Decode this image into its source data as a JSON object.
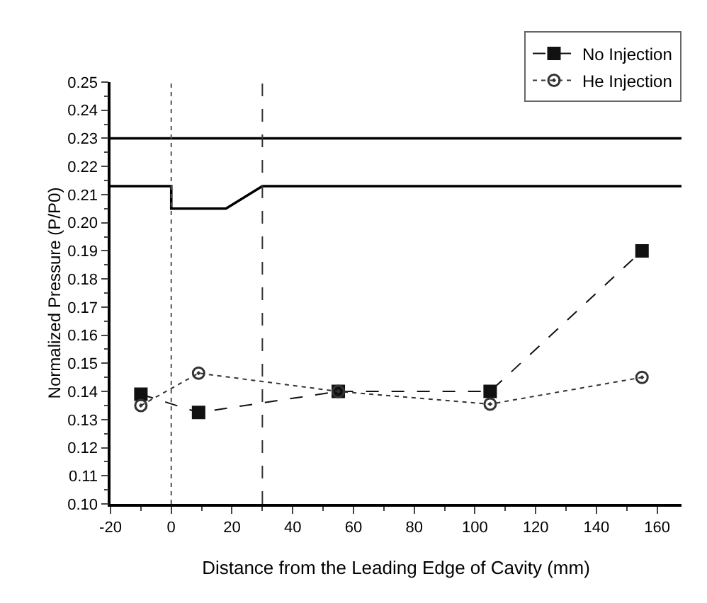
{
  "chart_data": {
    "type": "line",
    "xlabel": "Distance from the Leading Edge of Cavity (mm)",
    "ylabel": "Normalized Pressure (P/P0)",
    "x": [
      -10,
      9,
      55,
      105,
      155
    ],
    "series": [
      {
        "name": "No Injection",
        "color": "#111111",
        "marker": "square",
        "line_style": "dashed",
        "values": [
          0.139,
          0.1325,
          0.14,
          0.14,
          0.19
        ]
      },
      {
        "name": "He Injection",
        "color": "#333333",
        "marker": "circle",
        "line_style": "dotted",
        "values": [
          0.135,
          0.1465,
          0.14,
          0.1355,
          0.145
        ]
      },
      {
        "color": "#000000",
        "marker": "none",
        "line_style": "solid",
        "x": [
          -20,
          168
        ],
        "values": [
          0.23,
          0.23
        ]
      },
      {
        "color": "#000000",
        "marker": "none",
        "line_style": "solid",
        "x": [
          -20,
          0,
          0,
          18,
          30,
          168
        ],
        "values": [
          0.213,
          0.213,
          0.205,
          0.205,
          0.213,
          0.213
        ]
      }
    ],
    "ref_lines": [
      {
        "axis": "x",
        "value": 0,
        "line_style": "dotted",
        "color": "#555555"
      },
      {
        "axis": "x",
        "value": 30,
        "line_style": "dashed",
        "color": "#333333"
      }
    ],
    "xlim": [
      -20,
      168
    ],
    "xticks": [
      -20,
      0,
      20,
      40,
      60,
      80,
      100,
      120,
      140,
      160
    ],
    "ylim": [
      0.1,
      0.25
    ],
    "yticks": [
      {
        "value": 0.1,
        "label": "0.10"
      },
      {
        "value": 0.11,
        "label": "0.11"
      },
      {
        "value": 0.12,
        "label": "0.12"
      },
      {
        "value": 0.13,
        "label": "0.13"
      },
      {
        "value": 0.14,
        "label": "0.14"
      },
      {
        "value": 0.15,
        "label": "0.15"
      },
      {
        "value": 0.16,
        "label": "0.16"
      },
      {
        "value": 0.17,
        "label": "0.17"
      },
      {
        "value": 0.18,
        "label": "0.18"
      },
      {
        "value": 0.19,
        "label": "0.19"
      },
      {
        "value": 0.2,
        "label": "0.20"
      },
      {
        "value": 0.21,
        "label": "0.21"
      },
      {
        "value": 0.22,
        "label": "0.22"
      },
      {
        "value": 0.23,
        "label": "0.23"
      },
      {
        "value": 0.24,
        "label": "0.24"
      },
      {
        "value": 0.25,
        "label": "0.25"
      }
    ],
    "grid": false,
    "legend": "top right"
  }
}
